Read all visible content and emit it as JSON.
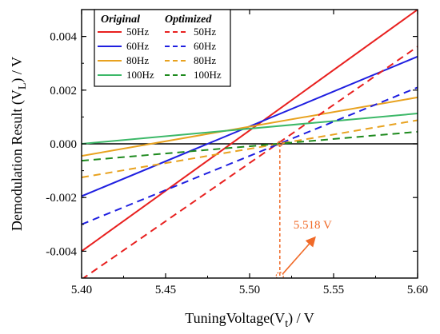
{
  "chart_data": {
    "type": "line",
    "title": "",
    "xlabel": "TuningVoltage(V",
    "xlabel_sub": "t",
    "xlabel_unit": ") / V",
    "ylabel": "Demodulation Result (V",
    "ylabel_sub": "L",
    "ylabel_unit": ") / V",
    "xlim": [
      5.4,
      5.6
    ],
    "ylim": [
      -0.005,
      0.005
    ],
    "xticks": [
      5.4,
      5.45,
      5.5,
      5.55,
      5.6
    ],
    "xtick_labels": [
      "5.40",
      "5.45",
      "5.50",
      "5.55",
      "5.60"
    ],
    "yticks": [
      -0.004,
      -0.002,
      0.0,
      0.002,
      0.004
    ],
    "ytick_labels": [
      "-0.004",
      "-0.002",
      "0.000",
      "0.002",
      "0.004"
    ],
    "grid": false,
    "legend": {
      "placement": "top-left",
      "col_headers": [
        "Original",
        "Optimized"
      ]
    },
    "zero_line": {
      "y": 0,
      "color": "#000000"
    },
    "series": [
      {
        "name": "50Hz",
        "group": "Original",
        "style": "solid",
        "color": "#e8201f",
        "x": [
          5.4,
          5.6
        ],
        "y": [
          -0.004,
          0.005
        ]
      },
      {
        "name": "60Hz",
        "group": "Original",
        "style": "solid",
        "color": "#1f1fe0",
        "x": [
          5.4,
          5.6
        ],
        "y": [
          -0.00195,
          0.00325
        ]
      },
      {
        "name": "80Hz",
        "group": "Original",
        "style": "solid",
        "color": "#e8a21f",
        "x": [
          5.4,
          5.6
        ],
        "y": [
          -0.00045,
          0.00173
        ]
      },
      {
        "name": "100Hz",
        "group": "Original",
        "style": "solid",
        "color": "#3cb868",
        "x": [
          5.4,
          5.6
        ],
        "y": [
          0.0,
          0.00113
        ]
      },
      {
        "name": "50Hz",
        "group": "Optimized",
        "style": "dashed",
        "color": "#e8201f",
        "x": [
          5.4,
          5.6
        ],
        "y": [
          -0.00505,
          0.00362
        ]
      },
      {
        "name": "60Hz",
        "group": "Optimized",
        "style": "dashed",
        "color": "#1f1fe0",
        "x": [
          5.4,
          5.6
        ],
        "y": [
          -0.003,
          0.0021
        ]
      },
      {
        "name": "80Hz",
        "group": "Optimized",
        "style": "dashed",
        "color": "#e8a21f",
        "x": [
          5.4,
          5.6
        ],
        "y": [
          -0.00125,
          0.00088
        ]
      },
      {
        "name": "100Hz",
        "group": "Optimized",
        "style": "dashed",
        "color": "#1e8a1e",
        "x": [
          5.4,
          5.6
        ],
        "y": [
          -0.00063,
          0.00045
        ]
      }
    ],
    "annotation": {
      "text": "5.518 V",
      "x": 5.518,
      "y": 0.0,
      "marker_y": -0.00495,
      "color": "#f06a28",
      "text_x": 5.528,
      "text_y": -0.00316
    }
  }
}
